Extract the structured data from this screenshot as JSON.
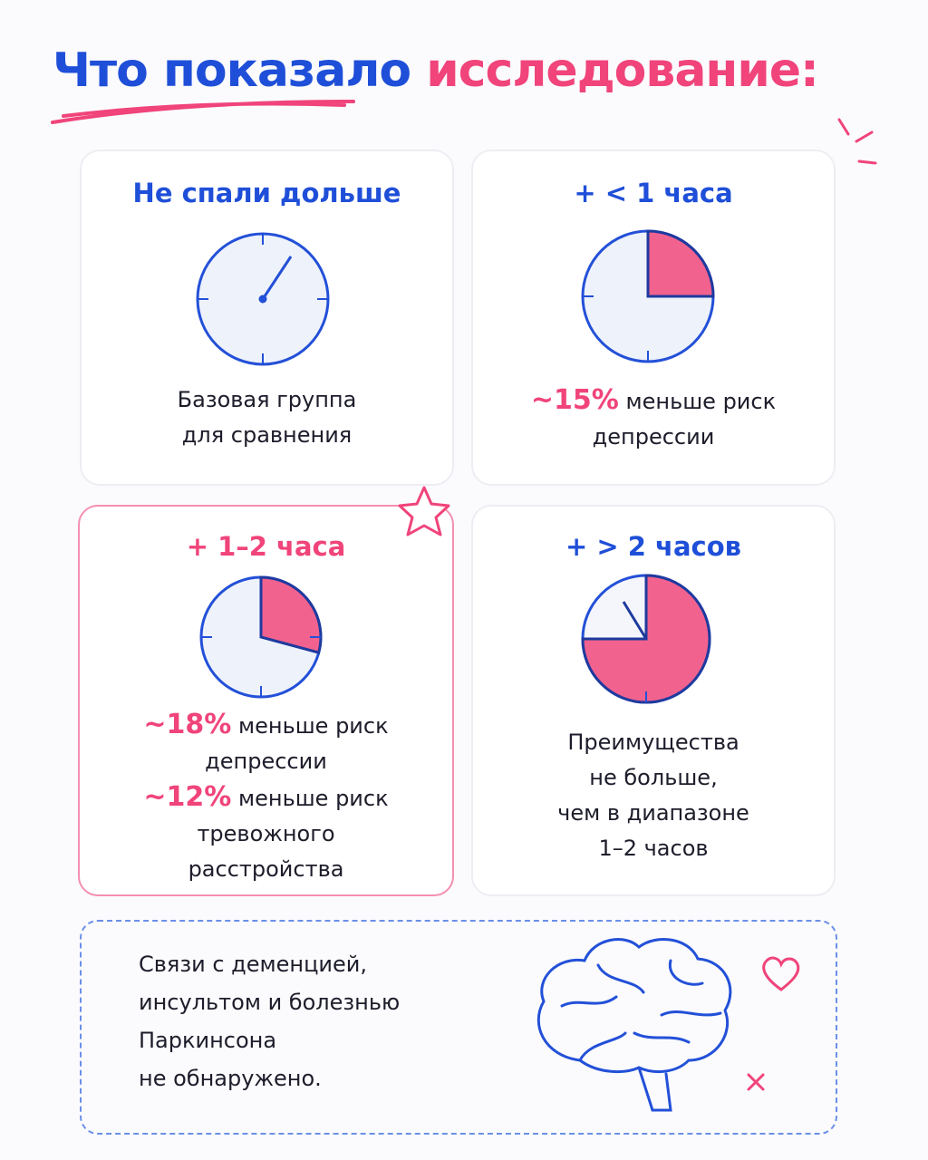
{
  "title": {
    "part1": "Что показало",
    "part2": "исследование:"
  },
  "cards": [
    {
      "heading": "Не спали дольше",
      "lines": [
        "Базовая группа",
        "для сравнения"
      ]
    },
    {
      "heading": "+ < 1 часа",
      "stats": [
        {
          "highlight": "~15%",
          "lines": [
            "меньше риск",
            "депрессии"
          ]
        }
      ]
    },
    {
      "heading": "+ 1–2 часа",
      "stats": [
        {
          "highlight": "~18%",
          "lines": [
            "меньше риск",
            "депрессии"
          ]
        },
        {
          "highlight": "~12%",
          "lines": [
            "меньше риск",
            "тревожного",
            "расстройства"
          ]
        }
      ]
    },
    {
      "heading": "+ > 2 часов",
      "lines": [
        "Преимущества",
        "не больше,",
        "чем в диапазоне",
        "1–2 часов"
      ]
    }
  ],
  "note": {
    "lines": [
      "Связи с деменцией,",
      "инсультом и болезнью",
      "Паркинсона",
      "не обнаружено."
    ]
  }
}
